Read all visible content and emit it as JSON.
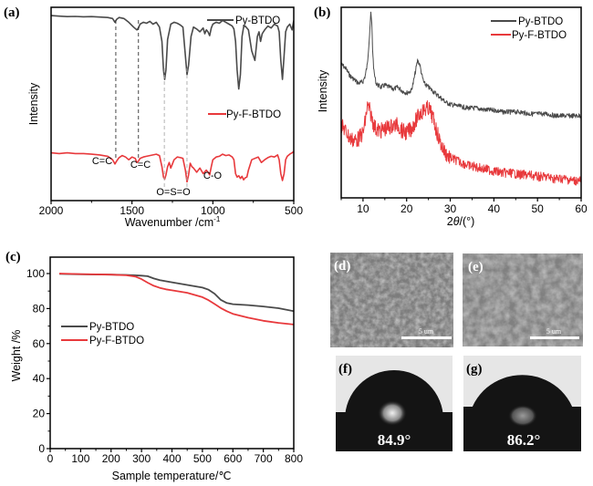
{
  "colors": {
    "series1": "#4a4a4a",
    "series2": "#e8393c",
    "axis": "#000000"
  },
  "chart_data": [
    {
      "panel": "(a)",
      "type": "line",
      "title": "",
      "xlabel": "Wavenumber /cm",
      "xlabel_sup": "-1",
      "ylabel": "Intensity",
      "xlim": [
        2000,
        500
      ],
      "x_ticks": [
        "2000",
        "1500",
        "1000",
        "500"
      ],
      "legend": [
        "Py-BTDO",
        "Py-F-BTDO"
      ],
      "legend_placement": "inline near each curve, top-right",
      "annotations": [
        {
          "text": "C=C",
          "x": 1600
        },
        {
          "text": "C=C",
          "x": 1460
        },
        {
          "text": "O=S=O",
          "x": 1230
        },
        {
          "text": "C-O",
          "x": 1010
        }
      ],
      "reference_lines": [
        1600,
        1460,
        1300,
        1160
      ],
      "series": [
        {
          "name": "Py-BTDO",
          "x": [
            2000,
            1950,
            1900,
            1850,
            1800,
            1750,
            1700,
            1650,
            1620,
            1605,
            1595,
            1580,
            1550,
            1520,
            1490,
            1470,
            1460,
            1450,
            1430,
            1410,
            1390,
            1370,
            1350,
            1330,
            1315,
            1305,
            1298,
            1290,
            1280,
            1260,
            1240,
            1220,
            1200,
            1185,
            1170,
            1160,
            1150,
            1135,
            1120,
            1100,
            1080,
            1060,
            1050,
            1040,
            1030,
            1020,
            1010,
            1000,
            980,
            960,
            940,
            920,
            900,
            880,
            870,
            860,
            850,
            840,
            830,
            820,
            810,
            800,
            780,
            760,
            740,
            725,
            715,
            705,
            695,
            680,
            660,
            640,
            620,
            600,
            590,
            580,
            570,
            560,
            550,
            540,
            525,
            510,
            500
          ],
          "y": [
            0.97,
            0.965,
            0.96,
            0.962,
            0.958,
            0.96,
            0.955,
            0.95,
            0.94,
            0.9,
            0.93,
            0.95,
            0.94,
            0.9,
            0.85,
            0.82,
            0.84,
            0.88,
            0.9,
            0.89,
            0.91,
            0.88,
            0.9,
            0.85,
            0.7,
            0.4,
            0.3,
            0.4,
            0.72,
            0.88,
            0.9,
            0.89,
            0.87,
            0.85,
            0.55,
            0.35,
            0.45,
            0.75,
            0.85,
            0.83,
            0.8,
            0.84,
            0.78,
            0.82,
            0.8,
            0.76,
            0.84,
            0.88,
            0.9,
            0.89,
            0.92,
            0.9,
            0.88,
            0.86,
            0.83,
            0.7,
            0.4,
            0.2,
            0.35,
            0.75,
            0.85,
            0.86,
            0.82,
            0.6,
            0.5,
            0.75,
            0.8,
            0.7,
            0.78,
            0.82,
            0.86,
            0.84,
            0.88,
            0.86,
            0.8,
            0.5,
            0.3,
            0.55,
            0.8,
            0.85,
            0.88,
            0.82,
            0.92
          ]
        },
        {
          "name": "Py-F-BTDO",
          "x": [
            2000,
            1950,
            1900,
            1850,
            1800,
            1750,
            1700,
            1650,
            1620,
            1605,
            1595,
            1580,
            1560,
            1540,
            1520,
            1500,
            1480,
            1470,
            1460,
            1450,
            1430,
            1410,
            1390,
            1370,
            1350,
            1330,
            1315,
            1305,
            1298,
            1290,
            1280,
            1270,
            1260,
            1250,
            1240,
            1220,
            1200,
            1185,
            1170,
            1160,
            1150,
            1140,
            1130,
            1120,
            1100,
            1080,
            1060,
            1040,
            1030,
            1020,
            1010,
            1000,
            980,
            960,
            940,
            920,
            900,
            880,
            870,
            860,
            850,
            840,
            830,
            820,
            810,
            800,
            790,
            780,
            760,
            740,
            720,
            700,
            680,
            660,
            640,
            620,
            600,
            590,
            580,
            570,
            560,
            550,
            540,
            525,
            510,
            500
          ],
          "y": [
            0.4,
            0.39,
            0.4,
            0.39,
            0.39,
            0.38,
            0.37,
            0.35,
            0.3,
            0.24,
            0.28,
            0.33,
            0.36,
            0.34,
            0.3,
            0.34,
            0.32,
            0.26,
            0.28,
            0.32,
            0.34,
            0.35,
            0.36,
            0.37,
            0.38,
            0.36,
            0.2,
            0.05,
            0.02,
            0.08,
            0.2,
            0.26,
            0.18,
            0.24,
            0.3,
            0.34,
            0.33,
            0.32,
            0.15,
            -0.02,
            0.08,
            0.25,
            0.2,
            0.18,
            0.12,
            0.18,
            0.1,
            0.15,
            0.12,
            0.08,
            0.2,
            0.3,
            0.34,
            0.35,
            0.38,
            0.36,
            0.37,
            0.34,
            0.3,
            0.1,
            0.05,
            0.07,
            0.03,
            0.06,
            0.01,
            0.04,
            0.05,
            0.15,
            0.3,
            0.32,
            0.34,
            0.26,
            0.3,
            0.33,
            0.35,
            0.34,
            0.37,
            0.3,
            0.1,
            0.0,
            0.1,
            0.3,
            0.35,
            0.38,
            0.4,
            0.42
          ]
        }
      ]
    },
    {
      "panel": "(b)",
      "type": "line",
      "xlabel": "2θ/(°)",
      "ylabel": "Intensity",
      "xlim": [
        5,
        60
      ],
      "x_ticks": [
        "10",
        "20",
        "30",
        "40",
        "50",
        "60"
      ],
      "legend": [
        "Py-BTDO",
        "Py-F-BTDO"
      ],
      "legend_placement": "top-right",
      "series": [
        {
          "name": "Py-BTDO",
          "x": [
            5,
            6,
            7,
            8,
            9,
            10,
            10.5,
            11,
            11.5,
            11.8,
            12,
            12.2,
            12.5,
            13,
            14,
            15,
            16,
            17,
            18,
            19,
            20,
            21,
            21.5,
            22,
            22.5,
            23,
            23.5,
            24,
            25,
            26,
            27,
            28,
            29,
            30,
            32,
            34,
            36,
            38,
            40,
            42,
            44,
            46,
            48,
            50,
            52,
            54,
            56,
            58,
            60
          ],
          "y": [
            0.72,
            0.7,
            0.66,
            0.64,
            0.62,
            0.63,
            0.66,
            0.72,
            0.88,
            0.99,
            0.93,
            0.8,
            0.68,
            0.62,
            0.6,
            0.61,
            0.6,
            0.59,
            0.6,
            0.58,
            0.57,
            0.58,
            0.62,
            0.68,
            0.74,
            0.72,
            0.66,
            0.62,
            0.6,
            0.58,
            0.56,
            0.54,
            0.52,
            0.51,
            0.5,
            0.49,
            0.49,
            0.48,
            0.48,
            0.47,
            0.47,
            0.47,
            0.46,
            0.46,
            0.46,
            0.45,
            0.45,
            0.45,
            0.45
          ]
        },
        {
          "name": "Py-F-BTDO",
          "x": [
            5,
            6,
            7,
            8,
            9,
            10,
            10.5,
            11,
            11.5,
            12,
            12.5,
            13,
            14,
            15,
            16,
            17,
            18,
            19,
            20,
            21,
            22,
            23,
            24,
            25,
            25.5,
            26,
            27,
            28,
            29,
            30,
            32,
            34,
            36,
            38,
            40,
            42,
            44,
            46,
            48,
            50,
            52,
            54,
            56,
            58,
            60
          ],
          "y": [
            0.4,
            0.37,
            0.33,
            0.32,
            0.33,
            0.36,
            0.42,
            0.5,
            0.48,
            0.44,
            0.4,
            0.38,
            0.37,
            0.38,
            0.39,
            0.4,
            0.4,
            0.37,
            0.36,
            0.38,
            0.42,
            0.46,
            0.48,
            0.49,
            0.47,
            0.44,
            0.36,
            0.29,
            0.25,
            0.23,
            0.21,
            0.19,
            0.18,
            0.17,
            0.16,
            0.15,
            0.15,
            0.14,
            0.14,
            0.13,
            0.13,
            0.12,
            0.12,
            0.11,
            0.11
          ]
        }
      ]
    },
    {
      "panel": "(c)",
      "type": "line",
      "xlabel": "Sample temperature/℃",
      "ylabel": "Weight /%",
      "xlim": [
        0,
        800
      ],
      "ylim": [
        0,
        110
      ],
      "x_ticks": [
        "0",
        "100",
        "200",
        "300",
        "400",
        "500",
        "600",
        "700",
        "800"
      ],
      "y_ticks": [
        "0",
        "20",
        "40",
        "60",
        "80",
        "100"
      ],
      "legend": [
        "Py-BTDO",
        "Py-F-BTDO"
      ],
      "legend_placement": "center-left",
      "series": [
        {
          "name": "Py-BTDO",
          "x": [
            30,
            100,
            200,
            250,
            300,
            320,
            340,
            360,
            400,
            450,
            500,
            520,
            540,
            560,
            580,
            600,
            650,
            700,
            750,
            800
          ],
          "y": [
            99.8,
            99.6,
            99.4,
            99.2,
            98.8,
            98.5,
            97.2,
            96.2,
            95.0,
            93.5,
            92.0,
            90.8,
            88.5,
            85.0,
            83.2,
            82.5,
            82.0,
            81.2,
            80.2,
            78.5
          ]
        },
        {
          "name": "Py-F-BTDO",
          "x": [
            30,
            100,
            200,
            250,
            280,
            300,
            320,
            340,
            360,
            380,
            400,
            450,
            500,
            520,
            540,
            560,
            580,
            600,
            650,
            700,
            750,
            800
          ],
          "y": [
            100.0,
            99.7,
            99.4,
            99.0,
            98.3,
            96.8,
            94.8,
            93.0,
            91.8,
            91.0,
            90.4,
            89.0,
            86.5,
            84.8,
            82.6,
            80.3,
            78.5,
            77.0,
            74.8,
            73.0,
            71.8,
            70.9
          ]
        }
      ]
    }
  ],
  "images": {
    "sem_d": {
      "label": "(d)",
      "scale_bar": "5 um"
    },
    "sem_e": {
      "label": "(e)",
      "scale_bar": "5 um"
    },
    "contact_f": {
      "label": "(f)",
      "angle": "84.9°"
    },
    "contact_g": {
      "label": "(g)",
      "angle": "86.2°"
    }
  }
}
